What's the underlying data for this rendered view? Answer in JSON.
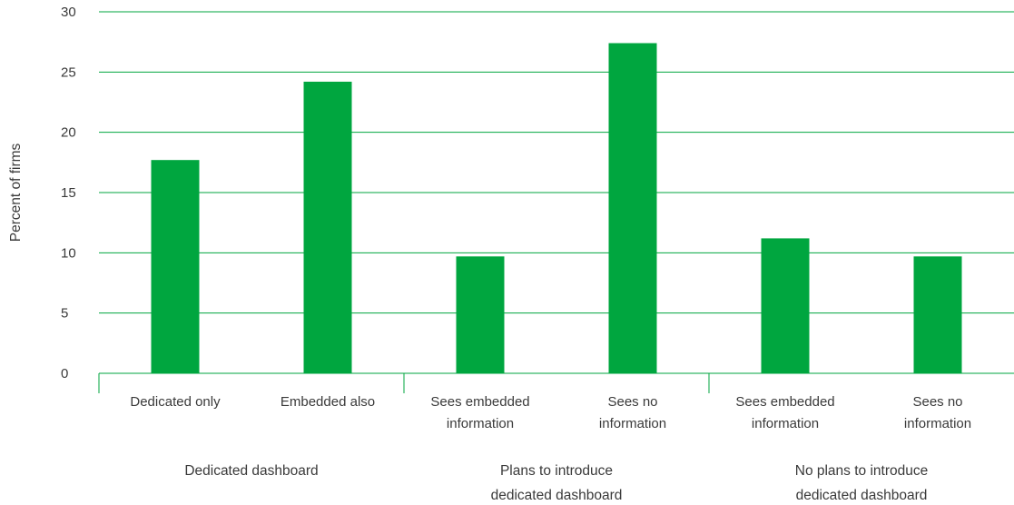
{
  "chart_data": {
    "type": "bar",
    "ylabel": "Percent of firms",
    "ylim": [
      0,
      30
    ],
    "yticks": [
      0,
      5,
      10,
      15,
      20,
      25,
      30
    ],
    "grid": true,
    "bar_color": "#00a63f",
    "grid_color": "#00a63f",
    "categories": [
      [
        "Dedicated only"
      ],
      [
        "Embedded also"
      ],
      [
        "Sees embedded",
        "information"
      ],
      [
        "Sees no",
        "information"
      ],
      [
        "Sees embedded",
        "information"
      ],
      [
        "Sees no",
        "information"
      ]
    ],
    "values": [
      17.7,
      24.2,
      9.7,
      27.4,
      11.2,
      9.7
    ],
    "groups": [
      {
        "label": [
          "Dedicated dashboard"
        ],
        "categories": [
          0,
          1
        ]
      },
      {
        "label": [
          "Plans to introduce",
          "dedicated dashboard"
        ],
        "categories": [
          2,
          3
        ]
      },
      {
        "label": [
          "No plans to introduce",
          "dedicated dashboard"
        ],
        "categories": [
          4,
          5
        ]
      }
    ]
  }
}
